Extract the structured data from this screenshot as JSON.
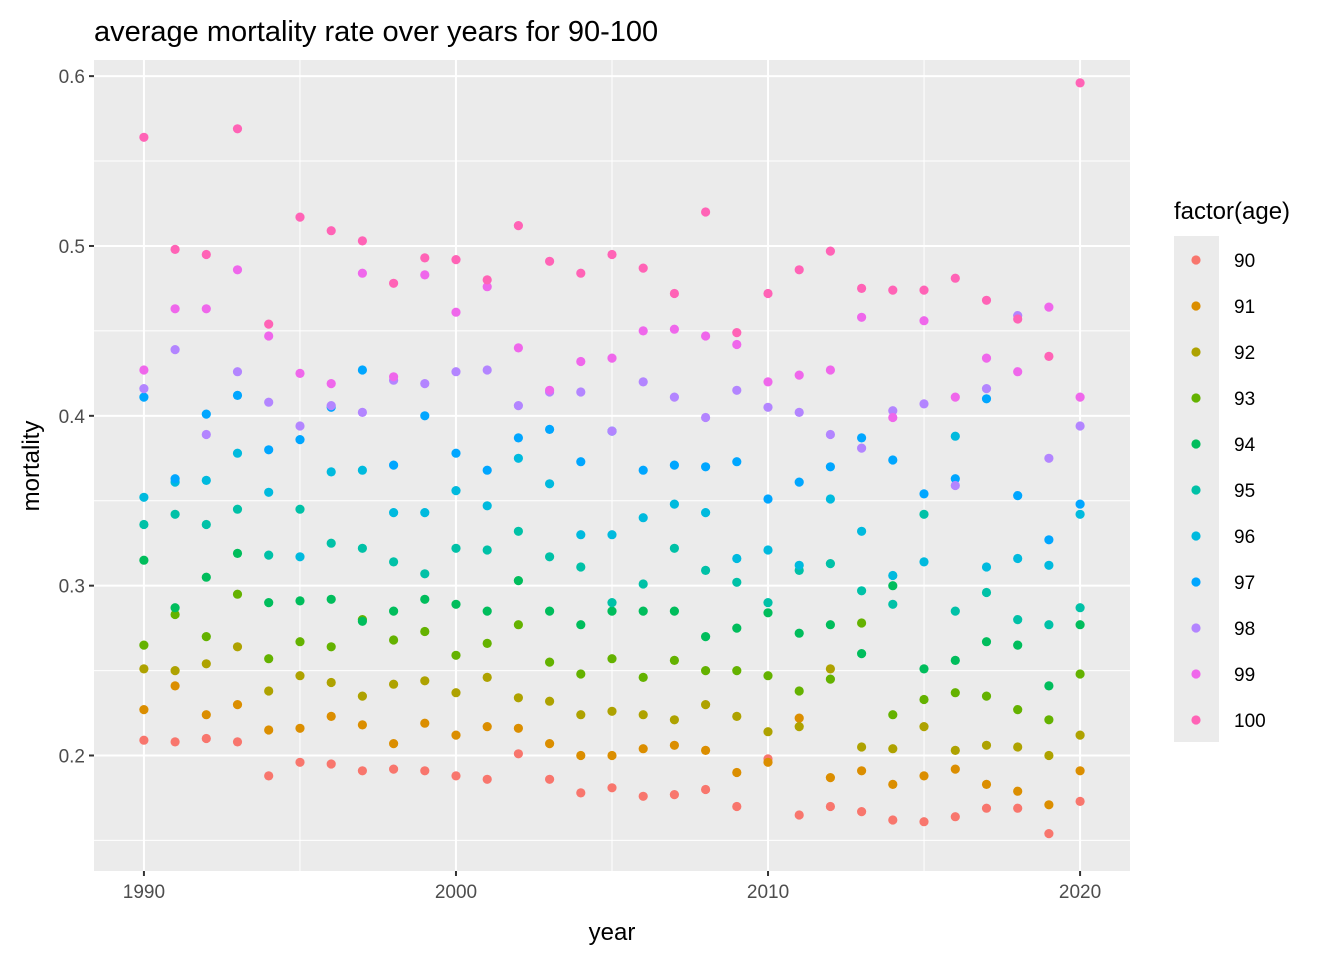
{
  "chart_data": {
    "type": "scatter",
    "title": "average mortality rate over years for 90-100",
    "xlabel": "year",
    "ylabel": "mortality",
    "xlim": [
      1988.4,
      2021.6
    ],
    "ylim": [
      0.132,
      0.6095
    ],
    "x_ticks": [
      1990,
      2000,
      2010,
      2020
    ],
    "x_tick_labels": [
      "1990",
      "2000",
      "2010",
      "2020"
    ],
    "y_ticks": [
      0.2,
      0.3,
      0.4,
      0.5,
      0.6
    ],
    "y_tick_labels": [
      "0.2",
      "0.3",
      "0.4",
      "0.5",
      "0.6"
    ],
    "grid": true,
    "legend": {
      "title": "factor(age)",
      "placement": "right"
    },
    "x": [
      1990,
      1991,
      1992,
      1993,
      1994,
      1995,
      1996,
      1997,
      1998,
      1999,
      2000,
      2001,
      2002,
      2003,
      2004,
      2005,
      2006,
      2007,
      2008,
      2009,
      2010,
      2011,
      2012,
      2013,
      2014,
      2015,
      2016,
      2017,
      2018,
      2019,
      2020
    ],
    "series": [
      {
        "name": "90",
        "color": "#F8766D",
        "values": [
          0.209,
          0.208,
          0.21,
          0.208,
          0.188,
          0.196,
          0.195,
          0.191,
          0.192,
          0.191,
          0.188,
          0.186,
          0.201,
          0.186,
          0.178,
          0.181,
          0.176,
          0.177,
          0.18,
          0.17,
          0.198,
          0.165,
          0.17,
          0.167,
          0.162,
          0.161,
          0.164,
          0.169,
          0.169,
          0.154,
          0.173
        ]
      },
      {
        "name": "91",
        "color": "#DB8E00",
        "values": [
          0.227,
          0.241,
          0.224,
          0.23,
          0.215,
          0.216,
          0.223,
          0.218,
          0.207,
          0.219,
          0.212,
          0.217,
          0.216,
          0.207,
          0.2,
          0.2,
          0.204,
          0.206,
          0.203,
          0.19,
          0.196,
          0.222,
          0.187,
          0.191,
          0.183,
          0.188,
          0.192,
          0.183,
          0.179,
          0.171,
          0.191
        ]
      },
      {
        "name": "92",
        "color": "#AEA200",
        "values": [
          0.251,
          0.25,
          0.254,
          0.264,
          0.238,
          0.247,
          0.243,
          0.235,
          0.242,
          0.244,
          0.237,
          0.246,
          0.234,
          0.232,
          0.224,
          0.226,
          0.224,
          0.221,
          0.23,
          0.223,
          0.214,
          0.217,
          0.251,
          0.205,
          0.204,
          0.217,
          0.203,
          0.206,
          0.205,
          0.2,
          0.212
        ]
      },
      {
        "name": "93",
        "color": "#64B200",
        "values": [
          0.265,
          0.283,
          0.27,
          0.295,
          0.257,
          0.267,
          0.264,
          0.28,
          0.268,
          0.273,
          0.259,
          0.266,
          0.277,
          0.255,
          0.248,
          0.257,
          0.246,
          0.256,
          0.25,
          0.25,
          0.247,
          0.238,
          0.245,
          0.278,
          0.224,
          0.233,
          0.237,
          0.235,
          0.227,
          0.221,
          0.248
        ]
      },
      {
        "name": "94",
        "color": "#00BD5C",
        "values": [
          0.315,
          0.287,
          0.305,
          0.319,
          0.29,
          0.291,
          0.292,
          0.279,
          0.285,
          0.292,
          0.289,
          0.285,
          0.303,
          0.285,
          0.277,
          0.285,
          0.285,
          0.285,
          0.27,
          0.275,
          0.284,
          0.272,
          0.277,
          0.26,
          0.3,
          0.251,
          0.256,
          0.267,
          0.265,
          0.241,
          0.277
        ]
      },
      {
        "name": "95",
        "color": "#00C1A7",
        "values": [
          0.336,
          0.342,
          0.336,
          0.345,
          0.318,
          0.345,
          0.325,
          0.322,
          0.314,
          0.307,
          0.322,
          0.321,
          0.332,
          0.317,
          0.311,
          0.29,
          0.301,
          0.322,
          0.309,
          0.302,
          0.29,
          0.309,
          0.313,
          0.297,
          0.289,
          0.342,
          0.285,
          0.296,
          0.28,
          0.277,
          0.287
        ]
      },
      {
        "name": "96",
        "color": "#00BADE",
        "values": [
          0.352,
          0.361,
          0.362,
          0.378,
          0.355,
          0.317,
          0.367,
          0.368,
          0.343,
          0.343,
          0.356,
          0.347,
          0.375,
          0.36,
          0.33,
          0.33,
          0.34,
          0.348,
          0.343,
          0.316,
          0.321,
          0.312,
          0.351,
          0.332,
          0.306,
          0.314,
          0.388,
          0.311,
          0.316,
          0.312,
          0.342
        ]
      },
      {
        "name": "97",
        "color": "#00A6FF",
        "values": [
          0.411,
          0.363,
          0.401,
          0.412,
          0.38,
          0.386,
          0.405,
          0.427,
          0.371,
          0.4,
          0.378,
          0.368,
          0.387,
          0.392,
          0.373,
          0.391,
          0.368,
          0.371,
          0.37,
          0.373,
          0.351,
          0.361,
          0.37,
          0.387,
          0.374,
          0.354,
          0.363,
          0.41,
          0.353,
          0.327,
          0.348
        ]
      },
      {
        "name": "98",
        "color": "#B385FF",
        "values": [
          0.416,
          0.439,
          0.389,
          0.426,
          0.408,
          0.394,
          0.406,
          0.402,
          0.421,
          0.419,
          0.426,
          0.427,
          0.406,
          0.414,
          0.414,
          0.391,
          0.42,
          0.411,
          0.399,
          0.415,
          0.405,
          0.402,
          0.389,
          0.381,
          0.403,
          0.407,
          0.359,
          0.416,
          0.459,
          0.375,
          0.394
        ]
      },
      {
        "name": "99",
        "color": "#EF67EB",
        "values": [
          0.427,
          0.463,
          0.463,
          0.486,
          0.447,
          0.425,
          0.419,
          0.484,
          0.423,
          0.483,
          0.461,
          0.476,
          0.44,
          0.415,
          0.432,
          0.434,
          0.45,
          0.451,
          0.447,
          0.442,
          0.42,
          0.424,
          0.427,
          0.458,
          0.399,
          0.456,
          0.411,
          0.434,
          0.426,
          0.464,
          0.411
        ]
      },
      {
        "name": "100",
        "color": "#FF63B6",
        "values": [
          0.564,
          0.498,
          0.495,
          0.569,
          0.454,
          0.517,
          0.509,
          0.503,
          0.478,
          0.493,
          0.492,
          0.48,
          0.512,
          0.491,
          0.484,
          0.495,
          0.487,
          0.472,
          0.52,
          0.449,
          0.472,
          0.486,
          0.497,
          0.475,
          0.474,
          0.474,
          0.481,
          0.468,
          0.457,
          0.435,
          0.596
        ]
      }
    ]
  }
}
